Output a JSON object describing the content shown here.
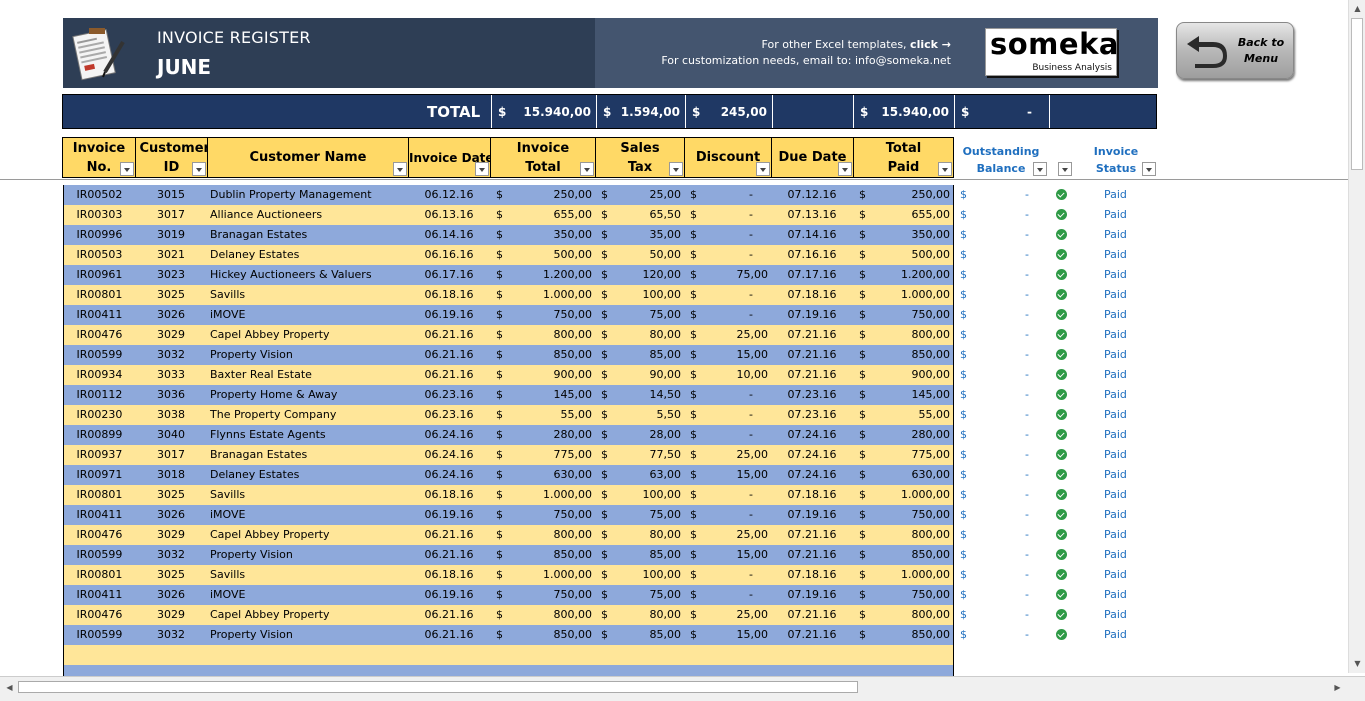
{
  "banner": {
    "title": "INVOICE REGISTER",
    "month": "JUNE",
    "promo_line1_prefix": "For other Excel templates, ",
    "promo_line1_link": "click →",
    "promo_line2": "For customization needs, email to: info@someka.net",
    "logo_main": "someka",
    "logo_sub": "Business Analysis"
  },
  "back_button": {
    "label": "Back to Menu"
  },
  "totals": {
    "label": "TOTAL",
    "currency": "$",
    "invoice_total": "15.940,00",
    "sales_tax": "1.594,00",
    "discount": "245,00",
    "total_paid": "15.940,00",
    "outstanding": "-"
  },
  "headers": {
    "invoice_no": "Invoice No.",
    "customer_id": "Customer ID",
    "customer_name": "Customer Name",
    "invoice_date": "Invoice Date",
    "invoice_total": "Invoice Total",
    "sales_tax": "Sales Tax",
    "discount": "Discount",
    "due_date": "Due Date",
    "total_paid": "Total Paid",
    "outstanding_balance": "Outstanding Balance",
    "invoice_status": "Invoice Status"
  },
  "colors": {
    "row_blue": "#8ea9db",
    "row_yellow": "#ffe699",
    "header": "#ffd966",
    "totals_bar": "#1f3864",
    "status_text": "#1f6fbf",
    "check": "#2e9a46"
  },
  "rows": [
    {
      "no": "IR00502",
      "id": "3015",
      "name": "Dublin Property Management",
      "date": "06.12.16",
      "total": "250,00",
      "tax": "25,00",
      "discount": "-",
      "due": "07.12.16",
      "paid": "250,00",
      "balance": "-",
      "status": "Paid"
    },
    {
      "no": "IR00303",
      "id": "3017",
      "name": "Alliance Auctioneers",
      "date": "06.13.16",
      "total": "655,00",
      "tax": "65,50",
      "discount": "-",
      "due": "07.13.16",
      "paid": "655,00",
      "balance": "-",
      "status": "Paid"
    },
    {
      "no": "IR00996",
      "id": "3019",
      "name": "Branagan Estates",
      "date": "06.14.16",
      "total": "350,00",
      "tax": "35,00",
      "discount": "-",
      "due": "07.14.16",
      "paid": "350,00",
      "balance": "-",
      "status": "Paid"
    },
    {
      "no": "IR00503",
      "id": "3021",
      "name": "Delaney Estates",
      "date": "06.16.16",
      "total": "500,00",
      "tax": "50,00",
      "discount": "-",
      "due": "07.16.16",
      "paid": "500,00",
      "balance": "-",
      "status": "Paid"
    },
    {
      "no": "IR00961",
      "id": "3023",
      "name": "Hickey Auctioneers & Valuers",
      "date": "06.17.16",
      "total": "1.200,00",
      "tax": "120,00",
      "discount": "75,00",
      "due": "07.17.16",
      "paid": "1.200,00",
      "balance": "-",
      "status": "Paid"
    },
    {
      "no": "IR00801",
      "id": "3025",
      "name": "Savills",
      "date": "06.18.16",
      "total": "1.000,00",
      "tax": "100,00",
      "discount": "-",
      "due": "07.18.16",
      "paid": "1.000,00",
      "balance": "-",
      "status": "Paid"
    },
    {
      "no": "IR00411",
      "id": "3026",
      "name": "iMOVE",
      "date": "06.19.16",
      "total": "750,00",
      "tax": "75,00",
      "discount": "-",
      "due": "07.19.16",
      "paid": "750,00",
      "balance": "-",
      "status": "Paid"
    },
    {
      "no": "IR00476",
      "id": "3029",
      "name": "Capel Abbey Property",
      "date": "06.21.16",
      "total": "800,00",
      "tax": "80,00",
      "discount": "25,00",
      "due": "07.21.16",
      "paid": "800,00",
      "balance": "-",
      "status": "Paid"
    },
    {
      "no": "IR00599",
      "id": "3032",
      "name": "Property Vision",
      "date": "06.21.16",
      "total": "850,00",
      "tax": "85,00",
      "discount": "15,00",
      "due": "07.21.16",
      "paid": "850,00",
      "balance": "-",
      "status": "Paid"
    },
    {
      "no": "IR00934",
      "id": "3033",
      "name": "Baxter Real Estate",
      "date": "06.21.16",
      "total": "900,00",
      "tax": "90,00",
      "discount": "10,00",
      "due": "07.21.16",
      "paid": "900,00",
      "balance": "-",
      "status": "Paid"
    },
    {
      "no": "IR00112",
      "id": "3036",
      "name": "Property Home & Away",
      "date": "06.23.16",
      "total": "145,00",
      "tax": "14,50",
      "discount": "-",
      "due": "07.23.16",
      "paid": "145,00",
      "balance": "-",
      "status": "Paid"
    },
    {
      "no": "IR00230",
      "id": "3038",
      "name": "The Property Company",
      "date": "06.23.16",
      "total": "55,00",
      "tax": "5,50",
      "discount": "-",
      "due": "07.23.16",
      "paid": "55,00",
      "balance": "-",
      "status": "Paid"
    },
    {
      "no": "IR00899",
      "id": "3040",
      "name": "Flynns Estate Agents",
      "date": "06.24.16",
      "total": "280,00",
      "tax": "28,00",
      "discount": "-",
      "due": "07.24.16",
      "paid": "280,00",
      "balance": "-",
      "status": "Paid"
    },
    {
      "no": "IR00937",
      "id": "3017",
      "name": "Branagan Estates",
      "date": "06.24.16",
      "total": "775,00",
      "tax": "77,50",
      "discount": "25,00",
      "due": "07.24.16",
      "paid": "775,00",
      "balance": "-",
      "status": "Paid"
    },
    {
      "no": "IR00971",
      "id": "3018",
      "name": "Delaney Estates",
      "date": "06.24.16",
      "total": "630,00",
      "tax": "63,00",
      "discount": "15,00",
      "due": "07.24.16",
      "paid": "630,00",
      "balance": "-",
      "status": "Paid"
    },
    {
      "no": "IR00801",
      "id": "3025",
      "name": "Savills",
      "date": "06.18.16",
      "total": "1.000,00",
      "tax": "100,00",
      "discount": "-",
      "due": "07.18.16",
      "paid": "1.000,00",
      "balance": "-",
      "status": "Paid"
    },
    {
      "no": "IR00411",
      "id": "3026",
      "name": "iMOVE",
      "date": "06.19.16",
      "total": "750,00",
      "tax": "75,00",
      "discount": "-",
      "due": "07.19.16",
      "paid": "750,00",
      "balance": "-",
      "status": "Paid"
    },
    {
      "no": "IR00476",
      "id": "3029",
      "name": "Capel Abbey Property",
      "date": "06.21.16",
      "total": "800,00",
      "tax": "80,00",
      "discount": "25,00",
      "due": "07.21.16",
      "paid": "800,00",
      "balance": "-",
      "status": "Paid"
    },
    {
      "no": "IR00599",
      "id": "3032",
      "name": "Property Vision",
      "date": "06.21.16",
      "total": "850,00",
      "tax": "85,00",
      "discount": "15,00",
      "due": "07.21.16",
      "paid": "850,00",
      "balance": "-",
      "status": "Paid"
    },
    {
      "no": "IR00801",
      "id": "3025",
      "name": "Savills",
      "date": "06.18.16",
      "total": "1.000,00",
      "tax": "100,00",
      "discount": "-",
      "due": "07.18.16",
      "paid": "1.000,00",
      "balance": "-",
      "status": "Paid"
    },
    {
      "no": "IR00411",
      "id": "3026",
      "name": "iMOVE",
      "date": "06.19.16",
      "total": "750,00",
      "tax": "75,00",
      "discount": "-",
      "due": "07.19.16",
      "paid": "750,00",
      "balance": "-",
      "status": "Paid"
    },
    {
      "no": "IR00476",
      "id": "3029",
      "name": "Capel Abbey Property",
      "date": "06.21.16",
      "total": "800,00",
      "tax": "80,00",
      "discount": "25,00",
      "due": "07.21.16",
      "paid": "800,00",
      "balance": "-",
      "status": "Paid"
    },
    {
      "no": "IR00599",
      "id": "3032",
      "name": "Property Vision",
      "date": "06.21.16",
      "total": "850,00",
      "tax": "85,00",
      "discount": "15,00",
      "due": "07.21.16",
      "paid": "850,00",
      "balance": "-",
      "status": "Paid"
    }
  ],
  "empty_rows": 2,
  "currency_symbol": "$",
  "icons": {
    "doc": "invoice-document-icon",
    "back": "back-arrow-icon",
    "check": "check-circle-icon",
    "filter": "filter-dropdown-icon"
  }
}
